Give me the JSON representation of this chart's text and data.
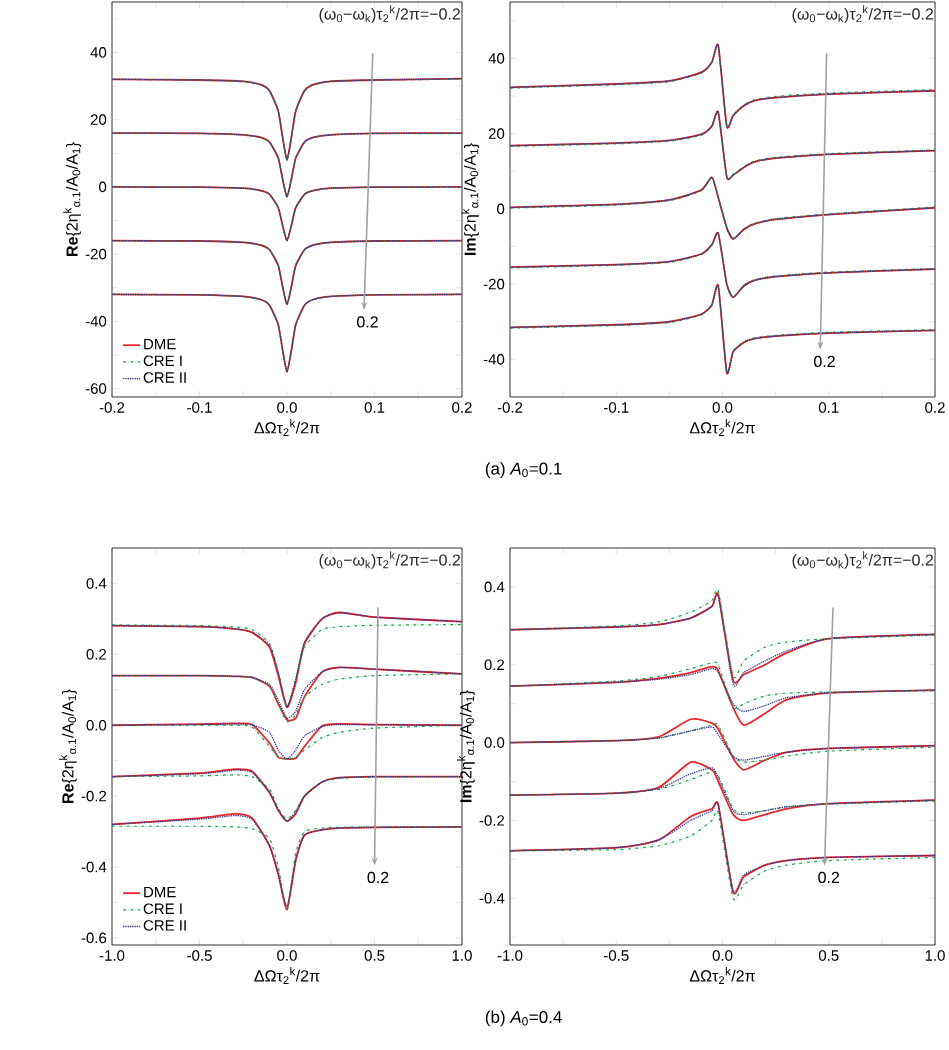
{
  "chart_data": [
    {
      "type": "line",
      "xlabel": "ΔΩτ$_{2}$$^{k}$/2π",
      "ylabel": "**Re**{2η$^{k}$$_{α.1}$/A$_{0}$/A$_{1}$}",
      "legend": "bottom left",
      "xlim": [
        -0.2,
        0.2
      ],
      "ylim": [
        -62.5,
        55
      ],
      "xticks": [
        -0.2,
        {
          "value": -0.15,
          "label": null
        },
        -0.1,
        {
          "value": -0.05,
          "label": null
        },
        {
          "value": 0,
          "label": "0.0"
        },
        {
          "value": 0.05,
          "label": null
        },
        0.1,
        {
          "value": 0.15,
          "label": null
        },
        0.2
      ],
      "yticks": [
        -60,
        {
          "value": -50,
          "label": null
        },
        -40,
        {
          "value": -30,
          "label": null
        },
        -20,
        {
          "value": -10,
          "label": null
        },
        0,
        {
          "value": 10,
          "label": null
        },
        20,
        {
          "value": 30,
          "label": null
        },
        40,
        {
          "value": 50,
          "label": null
        }
      ],
      "annotations": [
        "(ω$_{0}$−ω$_{k}$)τ$_{2}$$^{k}$/2π=−0.2",
        "0.2",
        "(a) *A*$_{0}$=0.1"
      ],
      "x": [
        -0.2,
        -0.1,
        -0.05,
        -0.03,
        -0.02,
        -0.01,
        -0.005,
        0,
        0.005,
        0.01,
        0.02,
        0.03,
        0.05,
        0.1,
        0.2
      ],
      "series": [
        {
          "name": "DME",
          "color": "#e8262b",
          "line_style": "solid",
          "values": [
            32,
            31.8,
            31.4,
            30.4,
            28.6,
            22.6,
            14.7,
            8,
            14.7,
            22.6,
            28.6,
            30.4,
            31.4,
            31.8,
            32.2
          ]
        },
        {
          "color": "#e8262b",
          "line_style": "solid",
          "values": [
            16,
            15.9,
            15.5,
            14.7,
            13.3,
            8.6,
            2.3,
            -3,
            2.3,
            8.6,
            13.3,
            14.7,
            15.5,
            15.9,
            16
          ]
        },
        {
          "color": "#e8262b",
          "line_style": "solid",
          "values": [
            0,
            -0.1,
            -0.4,
            -1.1,
            -2.2,
            -6.2,
            -11.5,
            -16,
            -11.5,
            -6.2,
            -2.2,
            -1.1,
            -0.4,
            -0.1,
            0
          ]
        },
        {
          "color": "#e8262b",
          "line_style": "solid",
          "values": [
            -16,
            -16.1,
            -16.5,
            -17.3,
            -18.7,
            -23.4,
            -29.7,
            -35,
            -29.7,
            -23.4,
            -18.7,
            -17.3,
            -16.5,
            -16.1,
            -16
          ]
        },
        {
          "color": "#e8262b",
          "line_style": "solid",
          "values": [
            -32,
            -32.1,
            -32.6,
            -33.5,
            -35.2,
            -41,
            -48.6,
            -55,
            -48.6,
            -41,
            -35.2,
            -33.5,
            -32.6,
            -32.1,
            -32
          ]
        },
        {
          "name": "CRE I",
          "color": "#1aa04a",
          "line_style": "dashdot",
          "values": [
            32,
            31.8,
            31.4,
            30.4,
            28.6,
            22.6,
            14.7,
            8,
            14.7,
            22.6,
            28.6,
            30.4,
            31.4,
            31.8,
            32
          ]
        },
        {
          "color": "#1aa04a",
          "line_style": "dashdot",
          "values": [
            16,
            15.9,
            15.5,
            14.7,
            13.3,
            8.6,
            2.3,
            -3,
            2.3,
            8.6,
            13.3,
            14.7,
            15.5,
            15.9,
            15.8
          ]
        },
        {
          "color": "#1aa04a",
          "line_style": "dashdot",
          "values": [
            0,
            -0.1,
            -0.4,
            -1.1,
            -2.2,
            -6.2,
            -11.5,
            -16,
            -11.5,
            -6.2,
            -2.2,
            -1.1,
            -0.4,
            -0.1,
            -0.2
          ]
        },
        {
          "color": "#1aa04a",
          "line_style": "dashdot",
          "values": [
            -16,
            -16.1,
            -16.5,
            -17.3,
            -18.7,
            -23.4,
            -29.7,
            -35,
            -29.7,
            -23.4,
            -18.7,
            -17.3,
            -16.5,
            -16.1,
            -16
          ]
        },
        {
          "color": "#1aa04a",
          "line_style": "dashdot",
          "values": [
            -32,
            -32.1,
            -32.6,
            -33.5,
            -35.2,
            -41,
            -48.6,
            -55,
            -48.6,
            -41,
            -35.2,
            -33.5,
            -32.6,
            -32.1,
            -32
          ]
        },
        {
          "name": "CRE II",
          "color": "#2b2f8f",
          "line_style": "dotted",
          "values": [
            32,
            31.8,
            31.4,
            30.4,
            28.6,
            22.6,
            14.7,
            8,
            14.7,
            22.6,
            28.6,
            30.4,
            31.4,
            31.8,
            32.2
          ]
        },
        {
          "color": "#2b2f8f",
          "line_style": "dotted",
          "values": [
            16,
            15.9,
            15.5,
            14.7,
            13.3,
            8.6,
            2.3,
            -3,
            2.3,
            8.6,
            13.3,
            14.7,
            15.5,
            15.9,
            16
          ]
        },
        {
          "color": "#2b2f8f",
          "line_style": "dotted",
          "values": [
            0,
            -0.1,
            -0.4,
            -1.1,
            -2.2,
            -6.2,
            -11.5,
            -16,
            -11.5,
            -6.2,
            -2.2,
            -1.1,
            -0.4,
            -0.1,
            0
          ]
        },
        {
          "color": "#2b2f8f",
          "line_style": "dotted",
          "values": [
            -16,
            -16.1,
            -16.5,
            -17.3,
            -18.7,
            -23.4,
            -29.7,
            -35,
            -29.7,
            -23.4,
            -18.7,
            -17.3,
            -16.5,
            -16.1,
            -16
          ]
        },
        {
          "color": "#2b2f8f",
          "line_style": "dotted",
          "values": [
            -32,
            -32.1,
            -32.6,
            -33.5,
            -35.2,
            -41,
            -48.6,
            -55,
            -48.6,
            -41,
            -35.2,
            -33.5,
            -32.6,
            -32.1,
            -32
          ]
        }
      ]
    },
    {
      "type": "line",
      "xlabel": "ΔΩτ$_{2}$$^{k}$/2π",
      "ylabel": "**Im**{2η$^{k}$$_{α.1}$/A$_{0}$/A$_{1}$}",
      "xlim": [
        -0.2,
        0.2
      ],
      "ylim": [
        -50,
        55
      ],
      "xticks": [
        -0.2,
        {
          "value": -0.15,
          "label": null
        },
        -0.1,
        {
          "value": -0.05,
          "label": null
        },
        {
          "value": 0,
          "label": "0.0"
        },
        {
          "value": 0.05,
          "label": null
        },
        0.1,
        {
          "value": 0.15,
          "label": null
        },
        0.2
      ],
      "yticks": [
        -40,
        {
          "value": -30,
          "label": null
        },
        -20,
        {
          "value": -10,
          "label": null
        },
        0,
        {
          "value": 10,
          "label": null
        },
        20,
        {
          "value": 30,
          "label": null
        },
        40,
        {
          "value": 50,
          "label": null
        }
      ],
      "annotations": [
        "(ω$_{0}$−ω$_{k}$)τ$_{2}$$^{k}$/2π=−0.2",
        "0.2"
      ],
      "x": [
        -0.2,
        -0.1,
        -0.05,
        -0.02,
        -0.01,
        -0.004,
        0.004,
        0.01,
        0.02,
        0.03,
        0.05,
        0.1,
        0.2
      ],
      "series": [
        {
          "color": "#e8262b",
          "line_style": "solid",
          "values": [
            32.3,
            33.2,
            34,
            36.3,
            39,
            43.4,
            22,
            24.8,
            27.4,
            28.8,
            29.6,
            30.5,
            31.4
          ]
        },
        {
          "color": "#e8262b",
          "line_style": "solid",
          "values": [
            16.8,
            17.5,
            18.2,
            19.8,
            22,
            25.7,
            8.5,
            9,
            11,
            12.5,
            13.5,
            14.5,
            15.5
          ]
        },
        {
          "color": "#e8262b",
          "line_style": "solid",
          "values": [
            0.4,
            1.2,
            2.4,
            5,
            8.4,
            3,
            -5,
            -8,
            -5.5,
            -4,
            -2.8,
            -1.5,
            0.3
          ]
        },
        {
          "color": "#e8262b",
          "line_style": "solid",
          "values": [
            -15.5,
            -14.8,
            -14,
            -12,
            -9.5,
            -6.5,
            -20,
            -23.5,
            -20.5,
            -19,
            -18,
            -17,
            -16
          ]
        },
        {
          "color": "#e8262b",
          "line_style": "solid",
          "values": [
            -31.5,
            -30.8,
            -30,
            -28,
            -25.5,
            -20.5,
            -43.5,
            -38,
            -35.5,
            -34.5,
            -33.8,
            -33,
            -32.3
          ]
        },
        {
          "color": "#1aa04a",
          "line_style": "dashdot",
          "values": [
            32.1,
            33,
            33.8,
            36.1,
            38.8,
            43.2,
            22.2,
            25,
            27.6,
            29,
            29.9,
            30.8,
            31.7
          ]
        },
        {
          "color": "#1aa04a",
          "line_style": "dashdot",
          "values": [
            16.6,
            17.3,
            18,
            19.6,
            21.8,
            25.5,
            8.7,
            9.2,
            11.2,
            12.7,
            13.7,
            14.7,
            15.7
          ]
        },
        {
          "color": "#1aa04a",
          "line_style": "dashdot",
          "values": [
            0.2,
            1,
            2.2,
            4.8,
            8.2,
            3,
            -4.8,
            -7.8,
            -5.3,
            -3.8,
            -2.6,
            -1.3,
            0.5
          ]
        },
        {
          "color": "#1aa04a",
          "line_style": "dashdot",
          "values": [
            -15.7,
            -15,
            -14.2,
            -12.2,
            -9.7,
            -6.7,
            -19.8,
            -23.3,
            -20.3,
            -18.8,
            -17.8,
            -16.8,
            -15.8
          ]
        },
        {
          "color": "#1aa04a",
          "line_style": "dashdot",
          "values": [
            -31.7,
            -31,
            -30.2,
            -28.2,
            -25.7,
            -20.7,
            -43.3,
            -37.8,
            -35.3,
            -34.3,
            -33.6,
            -32.8,
            -32.1
          ]
        },
        {
          "color": "#2b2f8f",
          "line_style": "dotted",
          "values": [
            32.3,
            33.2,
            34,
            36.3,
            39,
            43.4,
            22,
            24.8,
            27.4,
            28.8,
            29.6,
            30.5,
            31.4
          ]
        },
        {
          "color": "#2b2f8f",
          "line_style": "dotted",
          "values": [
            16.8,
            17.5,
            18.2,
            19.8,
            22,
            25.7,
            8.5,
            9,
            11,
            12.5,
            13.5,
            14.5,
            15.5
          ]
        },
        {
          "color": "#2b2f8f",
          "line_style": "dotted",
          "values": [
            0.4,
            1.2,
            2.4,
            5,
            8.4,
            3,
            -5,
            -8,
            -5.5,
            -4,
            -2.8,
            -1.5,
            0.3
          ]
        },
        {
          "color": "#2b2f8f",
          "line_style": "dotted",
          "values": [
            -15.5,
            -14.8,
            -14,
            -12,
            -9.5,
            -6.5,
            -20,
            -23.5,
            -20.5,
            -19,
            -18,
            -17,
            -16
          ]
        },
        {
          "color": "#2b2f8f",
          "line_style": "dotted",
          "values": [
            -31.5,
            -30.8,
            -30,
            -28,
            -25.5,
            -20.5,
            -43.5,
            -38,
            -35.5,
            -34.5,
            -33.8,
            -33,
            -32.3
          ]
        }
      ]
    },
    {
      "type": "line",
      "xlabel": "ΔΩτ$_{2}$$^{k}$/2π",
      "ylabel": "**Re**{2η$^{k}$$_{α.1}$/A$_{0}$/A$_{1}$}",
      "legend": "bottom left",
      "xlim": [
        -1,
        1
      ],
      "ylim": [
        -0.62,
        0.5
      ],
      "xticks": [
        {
          "value": -1,
          "label": "-1.0"
        },
        {
          "value": -0.75,
          "label": null
        },
        -0.5,
        {
          "value": -0.25,
          "label": null
        },
        {
          "value": 0,
          "label": "0.0"
        },
        {
          "value": 0.25,
          "label": null
        },
        0.5,
        {
          "value": 0.75,
          "label": null
        },
        {
          "value": 1,
          "label": "1.0"
        }
      ],
      "yticks": [
        -0.6,
        {
          "value": -0.5,
          "label": null
        },
        -0.4,
        {
          "value": -0.3,
          "label": null
        },
        -0.2,
        {
          "value": -0.1,
          "label": null
        },
        {
          "value": 0,
          "label": "0.0"
        },
        {
          "value": 0.1,
          "label": null
        },
        0.2,
        {
          "value": 0.3,
          "label": null
        },
        0.4
      ],
      "annotations": [
        "(ω$_{0}$−ω$_{k}$)τ$_{2}$$^{k}$/2π=−0.2",
        "0.2",
        "(b) *A*$_{0}$=0.4"
      ],
      "x": [
        -1,
        -0.5,
        -0.3,
        -0.2,
        -0.1,
        -0.05,
        0,
        0.05,
        0.1,
        0.2,
        0.3,
        0.5,
        1
      ],
      "series": [
        {
          "name": "DME",
          "color": "#e8262b",
          "line_style": "solid",
          "values": [
            0.281,
            0.278,
            0.272,
            0.262,
            0.22,
            0.14,
            0.05,
            0.12,
            0.23,
            0.3,
            0.318,
            0.305,
            0.292
          ]
        },
        {
          "color": "#e8262b",
          "line_style": "solid",
          "values": [
            0.14,
            0.14,
            0.138,
            0.135,
            0.11,
            0.06,
            0.015,
            0.02,
            0.08,
            0.15,
            0.163,
            0.158,
            0.145
          ]
        },
        {
          "color": "#e8262b",
          "line_style": "solid",
          "values": [
            0,
            0.003,
            0.005,
            0.002,
            -0.05,
            -0.09,
            -0.095,
            -0.093,
            -0.06,
            -0.002,
            0.004,
            0.002,
            0
          ]
        },
        {
          "color": "#e8262b",
          "line_style": "solid",
          "values": [
            -0.145,
            -0.135,
            -0.124,
            -0.13,
            -0.19,
            -0.24,
            -0.271,
            -0.25,
            -0.2,
            -0.16,
            -0.148,
            -0.145,
            -0.145
          ]
        },
        {
          "color": "#e8262b",
          "line_style": "solid",
          "values": [
            -0.28,
            -0.262,
            -0.25,
            -0.262,
            -0.34,
            -0.42,
            -0.52,
            -0.38,
            -0.31,
            -0.295,
            -0.29,
            -0.288,
            -0.287
          ]
        },
        {
          "name": "CRE I",
          "color": "#1aa04a",
          "line_style": "dashdot",
          "values": [
            0.283,
            0.281,
            0.277,
            0.27,
            0.23,
            0.15,
            0.055,
            0.13,
            0.22,
            0.27,
            0.278,
            0.282,
            0.284
          ]
        },
        {
          "color": "#1aa04a",
          "line_style": "dashdot",
          "values": [
            0.14,
            0.14,
            0.138,
            0.135,
            0.11,
            0.06,
            0.01,
            0.03,
            0.08,
            0.115,
            0.13,
            0.14,
            0.145
          ]
        },
        {
          "color": "#1aa04a",
          "line_style": "dashdot",
          "values": [
            0,
            0,
            0,
            -0.005,
            -0.06,
            -0.09,
            -0.095,
            -0.09,
            -0.07,
            -0.035,
            -0.02,
            -0.008,
            0
          ]
        },
        {
          "color": "#1aa04a",
          "line_style": "dashdot",
          "values": [
            -0.145,
            -0.143,
            -0.14,
            -0.145,
            -0.18,
            -0.235,
            -0.265,
            -0.24,
            -0.2,
            -0.16,
            -0.15,
            -0.146,
            -0.145
          ]
        },
        {
          "color": "#1aa04a",
          "line_style": "dashdot",
          "values": [
            -0.285,
            -0.285,
            -0.287,
            -0.292,
            -0.32,
            -0.4,
            -0.52,
            -0.36,
            -0.3,
            -0.29,
            -0.288,
            -0.287,
            -0.287
          ]
        },
        {
          "name": "CRE II",
          "color": "#2b2f8f",
          "line_style": "dotted",
          "values": [
            0.281,
            0.278,
            0.272,
            0.262,
            0.225,
            0.15,
            0.052,
            0.13,
            0.235,
            0.3,
            0.318,
            0.305,
            0.292
          ]
        },
        {
          "color": "#2b2f8f",
          "line_style": "dotted",
          "values": [
            0.14,
            0.14,
            0.138,
            0.135,
            0.115,
            0.07,
            0.02,
            0.04,
            0.1,
            0.15,
            0.163,
            0.158,
            0.145
          ]
        },
        {
          "color": "#2b2f8f",
          "line_style": "dotted",
          "values": [
            0,
            0.002,
            0.003,
            0.001,
            -0.02,
            -0.07,
            -0.095,
            -0.07,
            -0.03,
            -0.004,
            0.002,
            0.001,
            0
          ]
        },
        {
          "color": "#2b2f8f",
          "line_style": "dotted",
          "values": [
            -0.145,
            -0.137,
            -0.127,
            -0.133,
            -0.19,
            -0.24,
            -0.27,
            -0.245,
            -0.2,
            -0.16,
            -0.148,
            -0.145,
            -0.145
          ]
        },
        {
          "color": "#2b2f8f",
          "line_style": "dotted",
          "values": [
            -0.28,
            -0.265,
            -0.255,
            -0.265,
            -0.34,
            -0.42,
            -0.51,
            -0.38,
            -0.31,
            -0.295,
            -0.29,
            -0.288,
            -0.287
          ]
        }
      ]
    },
    {
      "type": "line",
      "xlabel": "ΔΩτ$_{2}$$^{k}$/2π",
      "ylabel": "**Im**{2η$^{k}$$_{α.1}$/A$_{0}$/A$_{1}$}",
      "xlim": [
        -1,
        1
      ],
      "ylim": [
        -0.52,
        0.5
      ],
      "xticks": [
        {
          "value": -1,
          "label": "-1.0"
        },
        {
          "value": -0.75,
          "label": null
        },
        -0.5,
        {
          "value": -0.25,
          "label": null
        },
        {
          "value": 0,
          "label": "0.0"
        },
        {
          "value": 0.25,
          "label": null
        },
        0.5,
        {
          "value": 0.75,
          "label": null
        },
        {
          "value": 1,
          "label": "1.0"
        }
      ],
      "yticks": [
        {
          "value": -0.5,
          "label": null
        },
        -0.4,
        {
          "value": -0.3,
          "label": null
        },
        -0.2,
        {
          "value": -0.1,
          "label": null
        },
        {
          "value": 0,
          "label": "0.0"
        },
        {
          "value": 0.1,
          "label": null
        },
        0.2,
        {
          "value": 0.3,
          "label": null
        },
        0.4
      ],
      "annotations": [
        "(ω$_{0}$−ω$_{k}$)τ$_{2}$$^{k}$/2π=−0.2",
        "0.2"
      ],
      "x": [
        -1,
        -0.5,
        -0.3,
        -0.15,
        -0.05,
        -0.02,
        0.05,
        0.1,
        0.2,
        0.3,
        0.5,
        1
      ],
      "series": [
        {
          "color": "#e8262b",
          "line_style": "solid",
          "values": [
            0.29,
            0.297,
            0.303,
            0.32,
            0.35,
            0.38,
            0.16,
            0.175,
            0.2,
            0.23,
            0.267,
            0.278
          ]
        },
        {
          "color": "#e8262b",
          "line_style": "solid",
          "values": [
            0.145,
            0.155,
            0.165,
            0.18,
            0.195,
            0.185,
            0.09,
            0.045,
            0.075,
            0.11,
            0.128,
            0.135
          ]
        },
        {
          "color": "#e8262b",
          "line_style": "solid",
          "values": [
            0,
            0.005,
            0.015,
            0.06,
            0.05,
            0.035,
            -0.04,
            -0.07,
            -0.045,
            -0.025,
            -0.015,
            -0.008
          ]
        },
        {
          "color": "#e8262b",
          "line_style": "solid",
          "values": [
            -0.135,
            -0.13,
            -0.115,
            -0.05,
            -0.07,
            -0.1,
            -0.185,
            -0.2,
            -0.185,
            -0.17,
            -0.157,
            -0.148
          ]
        },
        {
          "color": "#e8262b",
          "line_style": "solid",
          "values": [
            -0.278,
            -0.27,
            -0.25,
            -0.19,
            -0.17,
            -0.16,
            -0.385,
            -0.345,
            -0.315,
            -0.303,
            -0.295,
            -0.29
          ]
        },
        {
          "color": "#1aa04a",
          "line_style": "dashdot",
          "values": [
            0.29,
            0.3,
            0.31,
            0.335,
            0.365,
            0.39,
            0.17,
            0.21,
            0.245,
            0.258,
            0.267,
            0.276
          ]
        },
        {
          "color": "#1aa04a",
          "line_style": "dashdot",
          "values": [
            0.145,
            0.158,
            0.17,
            0.19,
            0.205,
            0.2,
            0.09,
            0.1,
            0.12,
            0.127,
            0.13,
            0.133
          ]
        },
        {
          "color": "#1aa04a",
          "line_style": "dashdot",
          "values": [
            0,
            0.005,
            0.012,
            0.03,
            0.045,
            0.045,
            -0.035,
            -0.05,
            -0.045,
            -0.035,
            -0.022,
            -0.012
          ]
        },
        {
          "color": "#1aa04a",
          "line_style": "dashdot",
          "values": [
            -0.135,
            -0.13,
            -0.12,
            -0.095,
            -0.075,
            -0.085,
            -0.17,
            -0.18,
            -0.175,
            -0.165,
            -0.158,
            -0.15
          ]
        },
        {
          "color": "#1aa04a",
          "line_style": "dashdot",
          "values": [
            -0.278,
            -0.275,
            -0.265,
            -0.24,
            -0.2,
            -0.18,
            -0.4,
            -0.365,
            -0.33,
            -0.315,
            -0.303,
            -0.295
          ]
        },
        {
          "color": "#2b2f8f",
          "line_style": "dotted",
          "values": [
            0.29,
            0.297,
            0.303,
            0.32,
            0.35,
            0.375,
            0.15,
            0.18,
            0.21,
            0.235,
            0.267,
            0.278
          ]
        },
        {
          "color": "#2b2f8f",
          "line_style": "dotted",
          "values": [
            0.145,
            0.155,
            0.163,
            0.175,
            0.19,
            0.18,
            0.1,
            0.08,
            0.095,
            0.115,
            0.128,
            0.135
          ]
        },
        {
          "color": "#2b2f8f",
          "line_style": "dotted",
          "values": [
            0,
            0.005,
            0.012,
            0.03,
            0.04,
            0.02,
            -0.035,
            -0.045,
            -0.035,
            -0.025,
            -0.015,
            -0.008
          ]
        },
        {
          "color": "#2b2f8f",
          "line_style": "dotted",
          "values": [
            -0.135,
            -0.13,
            -0.118,
            -0.08,
            -0.065,
            -0.09,
            -0.175,
            -0.185,
            -0.175,
            -0.165,
            -0.157,
            -0.148
          ]
        },
        {
          "color": "#2b2f8f",
          "line_style": "dotted",
          "values": [
            -0.278,
            -0.27,
            -0.25,
            -0.2,
            -0.175,
            -0.16,
            -0.38,
            -0.34,
            -0.315,
            -0.303,
            -0.295,
            -0.29
          ]
        }
      ]
    }
  ]
}
